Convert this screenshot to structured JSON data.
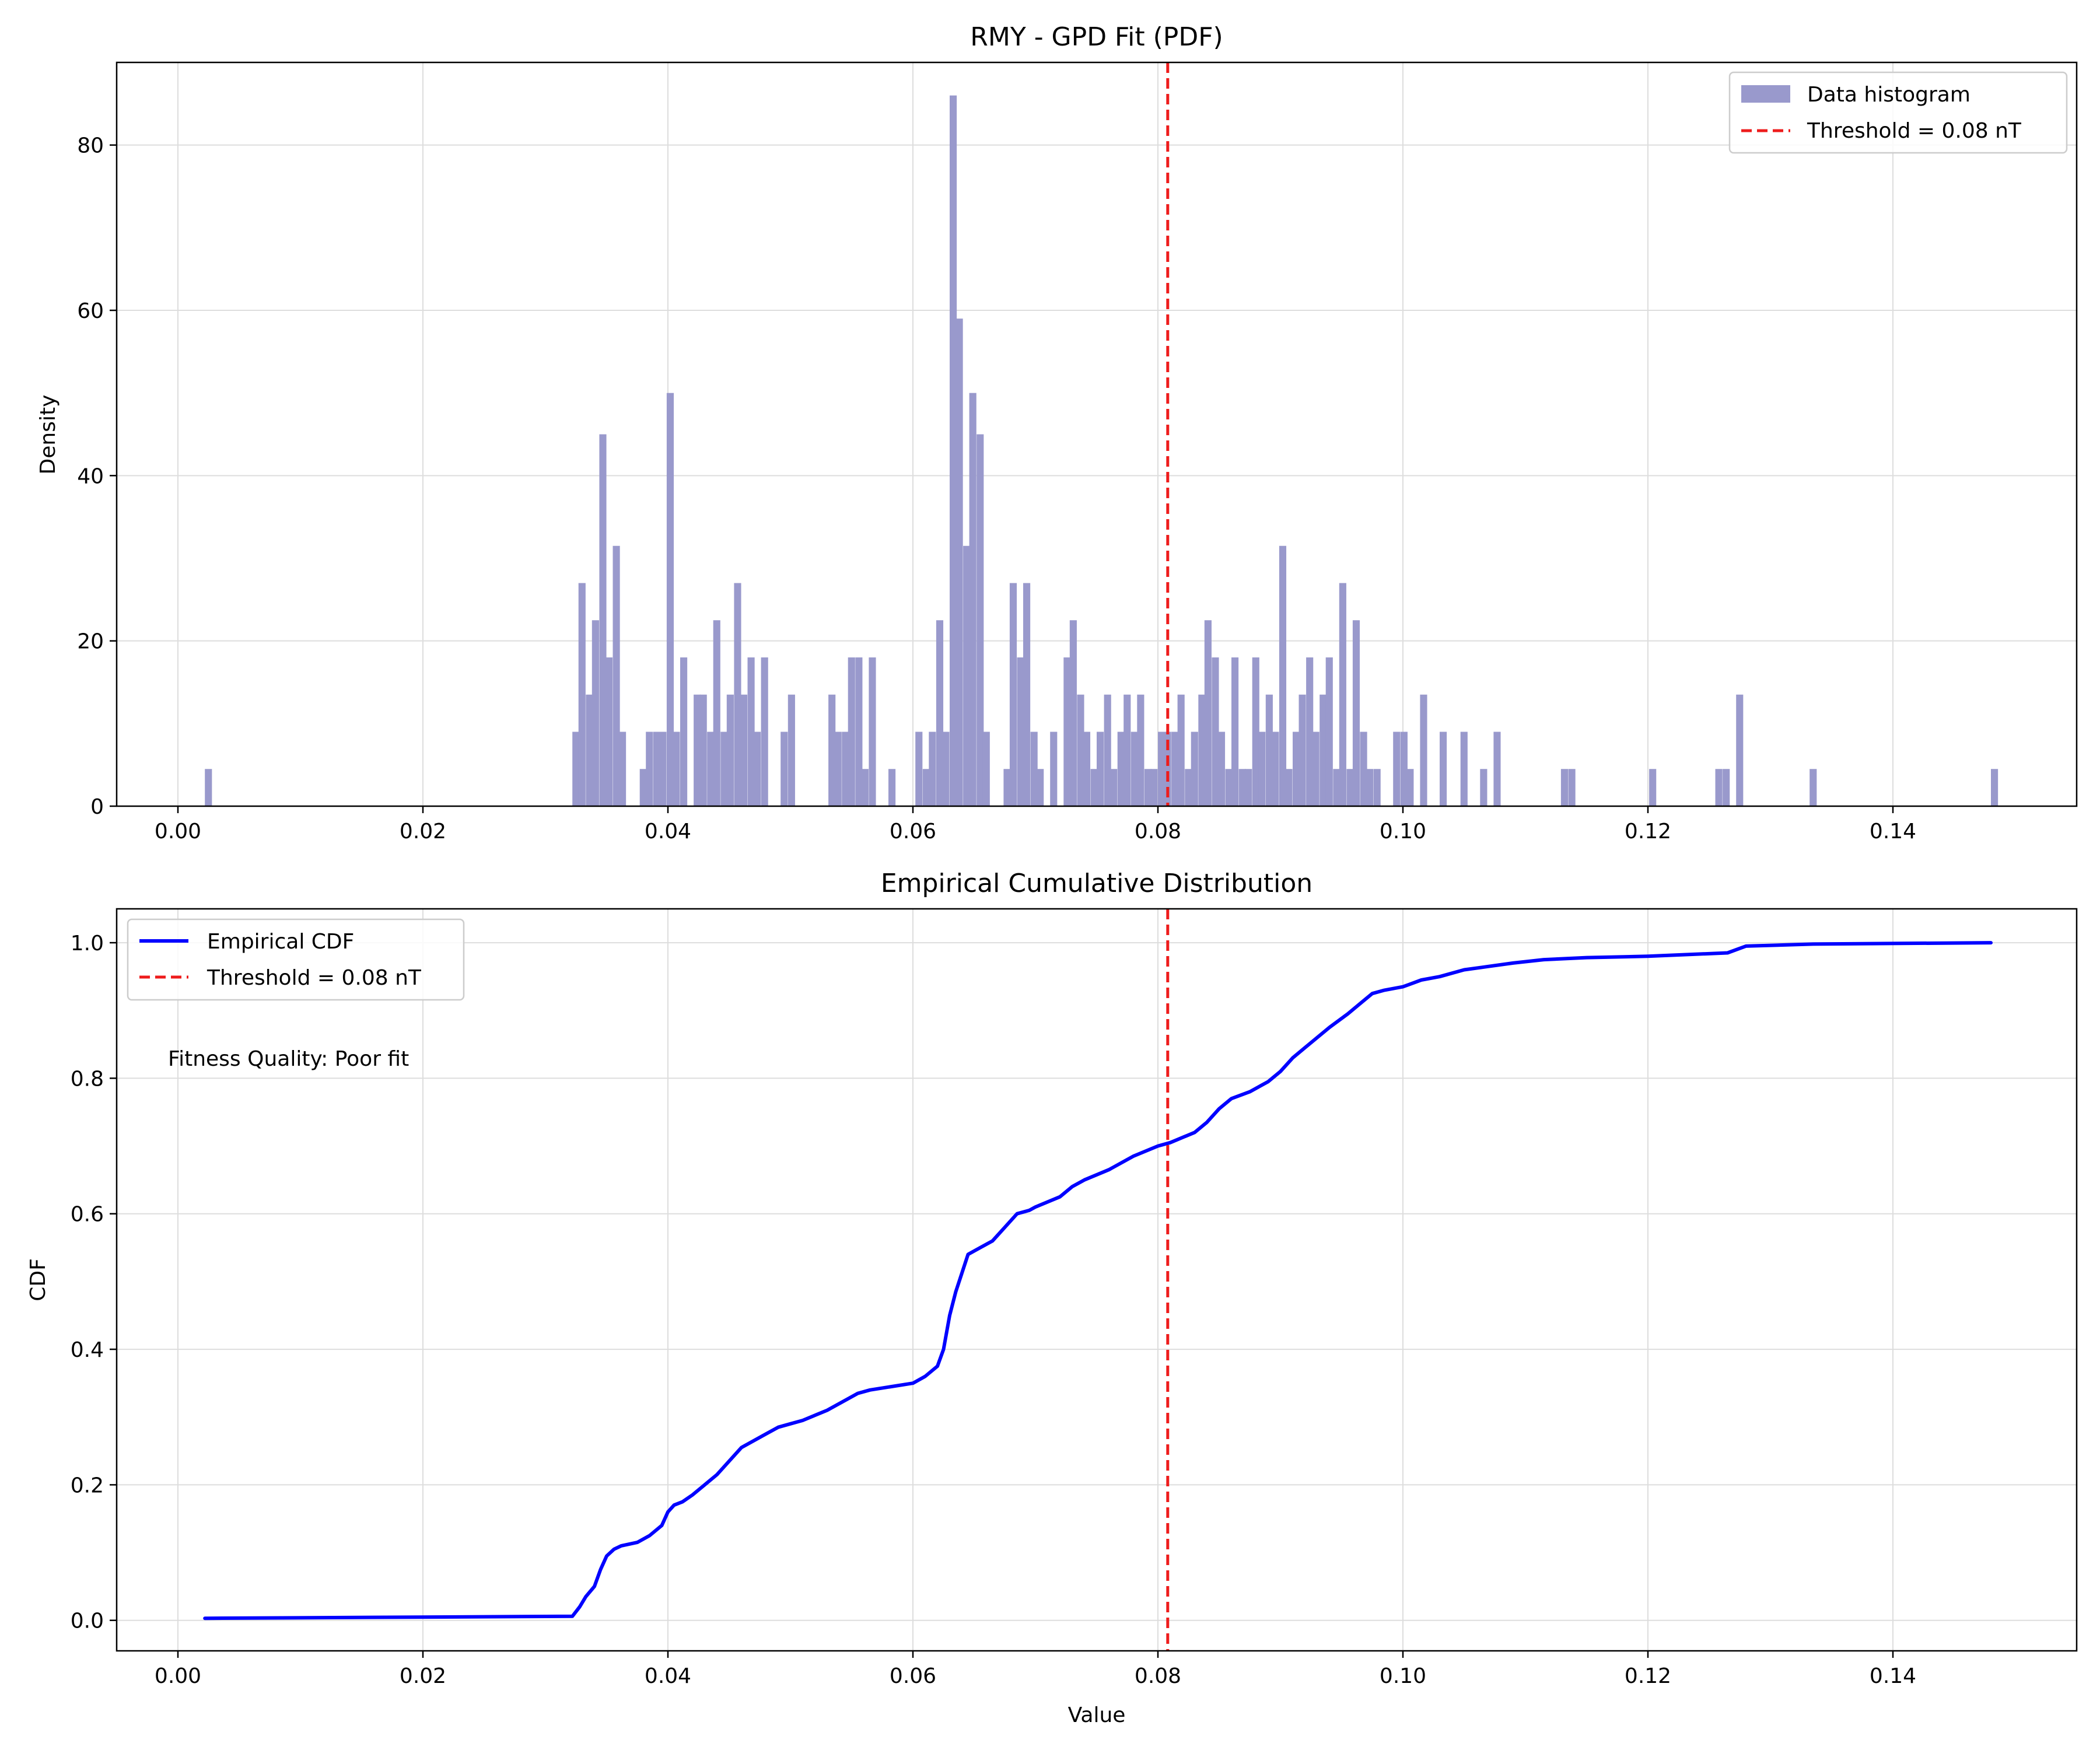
{
  "colors": {
    "histogram": "#9999cc",
    "cdf": "#0000ff",
    "threshold": "#ee1c1c",
    "grid": "#dddddd",
    "axis": "#000000"
  },
  "legend_text": {
    "histogram": "Data histogram",
    "threshold_top": "Threshold = 0.08 nT",
    "cdf": "Empirical CDF",
    "threshold_bottom": "Threshold = 0.08 nT"
  },
  "annotation": "Fitness Quality:  Poor fit",
  "chart_data": [
    {
      "type": "bar",
      "title": "RMY - GPD Fit (PDF)",
      "xlabel": "",
      "ylabel": "Density",
      "xlim": [
        -0.005,
        0.155
      ],
      "ylim": [
        0,
        90
      ],
      "xticks": [
        0.0,
        0.02,
        0.04,
        0.06,
        0.08,
        0.1,
        0.12,
        0.14
      ],
      "xtick_labels": [
        "0.00",
        "0.02",
        "0.04",
        "0.06",
        "0.08",
        "0.10",
        "0.12",
        "0.14"
      ],
      "yticks": [
        0,
        20,
        40,
        60,
        80
      ],
      "ytick_labels": [
        "0",
        "20",
        "40",
        "60",
        "80"
      ],
      "grid": true,
      "legend_position": "upper right",
      "bin_width": 0.00055,
      "threshold": 0.0808,
      "bins": [
        [
          0.0022,
          4.5
        ],
        [
          0.0322,
          9
        ],
        [
          0.0327,
          27
        ],
        [
          0.0333,
          13.5
        ],
        [
          0.0338,
          22.5
        ],
        [
          0.0344,
          45
        ],
        [
          0.0349,
          18
        ],
        [
          0.0355,
          31.5
        ],
        [
          0.036,
          9
        ],
        [
          0.0377,
          4.5
        ],
        [
          0.0382,
          9
        ],
        [
          0.0388,
          9
        ],
        [
          0.0393,
          9
        ],
        [
          0.0399,
          50
        ],
        [
          0.0404,
          9
        ],
        [
          0.041,
          18
        ],
        [
          0.0421,
          13.5
        ],
        [
          0.0426,
          13.5
        ],
        [
          0.0432,
          9
        ],
        [
          0.0437,
          22.5
        ],
        [
          0.0443,
          9
        ],
        [
          0.0448,
          13.5
        ],
        [
          0.0454,
          27
        ],
        [
          0.0459,
          13.5
        ],
        [
          0.0465,
          18
        ],
        [
          0.047,
          9
        ],
        [
          0.0476,
          18
        ],
        [
          0.0492,
          9
        ],
        [
          0.0498,
          13.5
        ],
        [
          0.0531,
          13.5
        ],
        [
          0.0536,
          9
        ],
        [
          0.0542,
          9
        ],
        [
          0.0547,
          18
        ],
        [
          0.0553,
          18
        ],
        [
          0.0558,
          4.5
        ],
        [
          0.0564,
          18
        ],
        [
          0.058,
          4.5
        ],
        [
          0.0602,
          9
        ],
        [
          0.0608,
          4.5
        ],
        [
          0.0613,
          9
        ],
        [
          0.0619,
          22.5
        ],
        [
          0.0624,
          9
        ],
        [
          0.063,
          86
        ],
        [
          0.0635,
          59
        ],
        [
          0.0641,
          31.5
        ],
        [
          0.0646,
          50
        ],
        [
          0.0652,
          45
        ],
        [
          0.0657,
          9
        ],
        [
          0.0674,
          4.5
        ],
        [
          0.0679,
          27
        ],
        [
          0.0685,
          18
        ],
        [
          0.069,
          27
        ],
        [
          0.0696,
          9
        ],
        [
          0.0701,
          4.5
        ],
        [
          0.0712,
          9
        ],
        [
          0.0723,
          18
        ],
        [
          0.0728,
          22.5
        ],
        [
          0.0734,
          13.5
        ],
        [
          0.0739,
          9
        ],
        [
          0.0745,
          4.5
        ],
        [
          0.075,
          9
        ],
        [
          0.0756,
          13.5
        ],
        [
          0.0761,
          4.5
        ],
        [
          0.0767,
          9
        ],
        [
          0.0772,
          13.5
        ],
        [
          0.0778,
          9
        ],
        [
          0.0783,
          13.5
        ],
        [
          0.0789,
          4.5
        ],
        [
          0.0794,
          4.5
        ],
        [
          0.08,
          9
        ],
        [
          0.0805,
          9
        ],
        [
          0.0811,
          9
        ],
        [
          0.0816,
          13.5
        ],
        [
          0.0822,
          4.5
        ],
        [
          0.0827,
          9
        ],
        [
          0.0833,
          13.5
        ],
        [
          0.0838,
          22.5
        ],
        [
          0.0844,
          18
        ],
        [
          0.0849,
          9
        ],
        [
          0.0855,
          4.5
        ],
        [
          0.086,
          18
        ],
        [
          0.0866,
          4.5
        ],
        [
          0.0871,
          4.5
        ],
        [
          0.0877,
          18
        ],
        [
          0.0882,
          9
        ],
        [
          0.0888,
          13.5
        ],
        [
          0.0893,
          9
        ],
        [
          0.0899,
          31.5
        ],
        [
          0.0904,
          4.5
        ],
        [
          0.091,
          9
        ],
        [
          0.0915,
          13.5
        ],
        [
          0.0921,
          18
        ],
        [
          0.0926,
          9
        ],
        [
          0.0932,
          13.5
        ],
        [
          0.0937,
          18
        ],
        [
          0.0943,
          4.5
        ],
        [
          0.0948,
          27
        ],
        [
          0.0954,
          4.5
        ],
        [
          0.0959,
          22.5
        ],
        [
          0.0965,
          9
        ],
        [
          0.097,
          4.5
        ],
        [
          0.0976,
          4.5
        ],
        [
          0.0992,
          9
        ],
        [
          0.0998,
          9
        ],
        [
          0.1003,
          4.5
        ],
        [
          0.1014,
          13.5
        ],
        [
          0.103,
          9
        ],
        [
          0.1047,
          9
        ],
        [
          0.1063,
          4.5
        ],
        [
          0.1074,
          9
        ],
        [
          0.1129,
          4.5
        ],
        [
          0.1135,
          4.5
        ],
        [
          0.1201,
          4.5
        ],
        [
          0.1255,
          4.5
        ],
        [
          0.1261,
          4.5
        ],
        [
          0.1272,
          13.5
        ],
        [
          0.1332,
          4.5
        ],
        [
          0.148,
          4.5
        ]
      ]
    },
    {
      "type": "line",
      "title": "Empirical Cumulative Distribution",
      "xlabel": "Value",
      "ylabel": "CDF",
      "xlim": [
        -0.005,
        0.155
      ],
      "ylim": [
        -0.045,
        1.05
      ],
      "xticks": [
        0.0,
        0.02,
        0.04,
        0.06,
        0.08,
        0.1,
        0.12,
        0.14
      ],
      "xtick_labels": [
        "0.00",
        "0.02",
        "0.04",
        "0.06",
        "0.08",
        "0.10",
        "0.12",
        "0.14"
      ],
      "yticks": [
        0.0,
        0.2,
        0.4,
        0.6,
        0.8,
        1.0
      ],
      "ytick_labels": [
        "0.0",
        "0.2",
        "0.4",
        "0.6",
        "0.8",
        "1.0"
      ],
      "grid": true,
      "legend_position": "upper left",
      "threshold": 0.0808,
      "x": [
        0.0022,
        0.0322,
        0.0328,
        0.0333,
        0.034,
        0.0345,
        0.035,
        0.0356,
        0.0362,
        0.0375,
        0.0385,
        0.0395,
        0.04,
        0.0405,
        0.0412,
        0.042,
        0.043,
        0.044,
        0.045,
        0.046,
        0.047,
        0.048,
        0.049,
        0.05,
        0.051,
        0.053,
        0.0545,
        0.0555,
        0.0565,
        0.06,
        0.061,
        0.062,
        0.0625,
        0.063,
        0.0635,
        0.0645,
        0.0655,
        0.0665,
        0.0675,
        0.0685,
        0.0695,
        0.07,
        0.072,
        0.073,
        0.074,
        0.076,
        0.078,
        0.08,
        0.081,
        0.083,
        0.084,
        0.085,
        0.086,
        0.0875,
        0.089,
        0.09,
        0.091,
        0.092,
        0.093,
        0.094,
        0.0955,
        0.0965,
        0.0975,
        0.0985,
        0.1,
        0.1015,
        0.103,
        0.105,
        0.107,
        0.109,
        0.1115,
        0.115,
        0.12,
        0.1265,
        0.128,
        0.1335,
        0.148
      ],
      "y": [
        0.003,
        0.006,
        0.02,
        0.035,
        0.05,
        0.075,
        0.095,
        0.105,
        0.11,
        0.115,
        0.125,
        0.14,
        0.16,
        0.17,
        0.175,
        0.185,
        0.2,
        0.215,
        0.235,
        0.255,
        0.265,
        0.275,
        0.285,
        0.29,
        0.295,
        0.31,
        0.325,
        0.335,
        0.34,
        0.35,
        0.36,
        0.375,
        0.4,
        0.45,
        0.485,
        0.54,
        0.55,
        0.56,
        0.58,
        0.6,
        0.605,
        0.61,
        0.625,
        0.64,
        0.65,
        0.665,
        0.685,
        0.7,
        0.705,
        0.72,
        0.735,
        0.755,
        0.77,
        0.78,
        0.795,
        0.81,
        0.83,
        0.845,
        0.86,
        0.875,
        0.895,
        0.91,
        0.925,
        0.93,
        0.935,
        0.945,
        0.95,
        0.96,
        0.965,
        0.97,
        0.975,
        0.978,
        0.98,
        0.985,
        0.995,
        0.998,
        1.0
      ]
    }
  ]
}
